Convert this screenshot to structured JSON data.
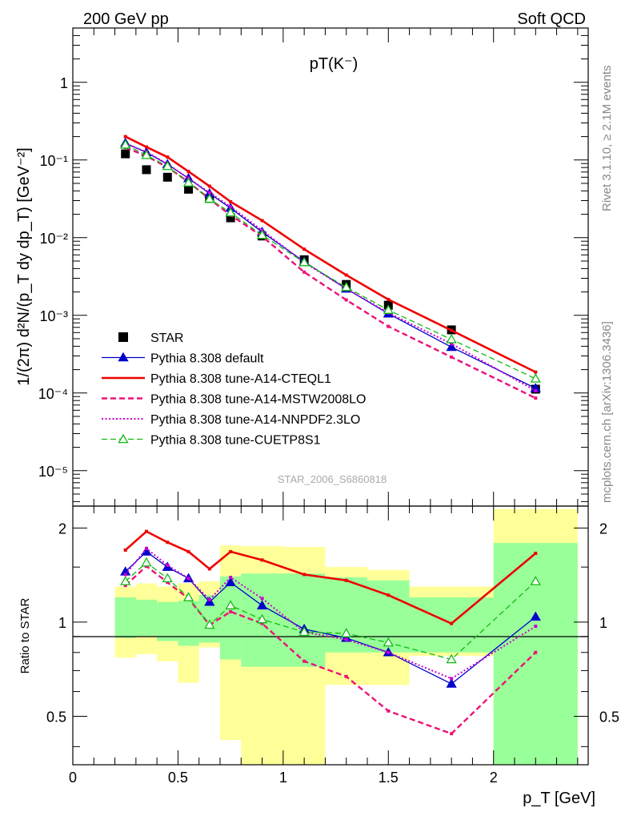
{
  "header": {
    "left": "200 GeV pp",
    "right": "Soft QCD"
  },
  "side_labels": {
    "rivet": "Rivet 3.1.10, ≥ 2.1M events",
    "source": "mcplots.cern.ch [arXiv:1306.3436]"
  },
  "chart_data": [
    {
      "type": "line",
      "title": "pT(K⁻)",
      "watermark": "STAR_2006_S6860818",
      "ylabel": "1/(2π) d²N/(p_T dy dp_T) [GeV⁻²]",
      "yscale": "log",
      "xlim": [
        0,
        2.45
      ],
      "ylim": [
        3.5e-06,
        5
      ],
      "y_tick_labels": [
        "1",
        "10⁻¹",
        "10⁻²",
        "10⁻³",
        "10⁻⁴",
        "10⁻⁵"
      ],
      "legend_position": "bottom-left",
      "x": [
        0.25,
        0.35,
        0.45,
        0.55,
        0.65,
        0.75,
        0.9,
        1.1,
        1.3,
        1.5,
        1.8,
        2.2
      ],
      "series": [
        {
          "name": "STAR",
          "style": "square",
          "color": "#000000",
          "values": [
            0.12,
            0.075,
            0.06,
            0.042,
            0.032,
            0.018,
            0.0105,
            0.0052,
            0.0025,
            0.00135,
            0.00065,
            0.000112
          ]
        },
        {
          "name": "Pythia 8.308 default",
          "style": "solid-triangle",
          "color": "#0000cc",
          "values": [
            0.165,
            0.125,
            0.088,
            0.058,
            0.037,
            0.024,
            0.0118,
            0.0049,
            0.0022,
            0.00105,
            0.00039,
            0.000115
          ]
        },
        {
          "name": "Pythia 8.308 tune-A14-CTEQL1",
          "style": "solid",
          "color": "#ee0000",
          "values": [
            0.2,
            0.147,
            0.109,
            0.071,
            0.046,
            0.029,
            0.0166,
            0.0071,
            0.0033,
            0.0016,
            0.00064,
            0.000186
          ]
        },
        {
          "name": "Pythia 8.308 tune-A14-MSTW2008LO",
          "style": "dashed",
          "color": "#ee1177",
          "values": [
            0.145,
            0.112,
            0.081,
            0.052,
            0.0315,
            0.0195,
            0.0104,
            0.0036,
            0.00158,
            0.00072,
            0.00029,
            8.6e-05
          ]
        },
        {
          "name": "Pythia 8.308 tune-A14-NNPDF2.3LO",
          "style": "dotted",
          "color": "#cc00cc",
          "values": [
            0.162,
            0.127,
            0.089,
            0.058,
            0.038,
            0.025,
            0.0124,
            0.0048,
            0.0022,
            0.00108,
            0.00043,
            0.000107
          ]
        },
        {
          "name": "Pythia 8.308 tune-CUETP8S1",
          "style": "dashed-open-triangle",
          "color": "#11bb11",
          "values": [
            0.157,
            0.115,
            0.083,
            0.051,
            0.0315,
            0.021,
            0.0108,
            0.0048,
            0.0023,
            0.00117,
            0.00049,
            0.000153
          ]
        }
      ]
    },
    {
      "type": "line",
      "ylabel": "Ratio to STAR",
      "xlabel": "p_T [GeV]",
      "yscale": "log",
      "xlim": [
        0,
        2.45
      ],
      "ylim": [
        0.35,
        2.35
      ],
      "x_tick_labels": [
        "0",
        "0.5",
        "1",
        "1.5",
        "2"
      ],
      "y_tick_labels": [
        "0.5",
        "1",
        "2"
      ],
      "reference_line": 1,
      "uncertainty_bands": [
        {
          "x_range": [
            0.2,
            0.3
          ],
          "green": [
            0.89,
            1.2
          ],
          "yellow": [
            0.77,
            1.3
          ]
        },
        {
          "x_range": [
            0.3,
            0.4
          ],
          "green": [
            0.9,
            1.18
          ],
          "yellow": [
            0.79,
            1.33
          ]
        },
        {
          "x_range": [
            0.4,
            0.5
          ],
          "green": [
            0.87,
            1.16
          ],
          "yellow": [
            0.75,
            1.3
          ]
        },
        {
          "x_range": [
            0.5,
            0.6
          ],
          "green": [
            0.84,
            1.17
          ],
          "yellow": [
            0.64,
            1.33
          ]
        },
        {
          "x_range": [
            0.6,
            0.7
          ],
          "green": [
            0.86,
            1.22
          ],
          "yellow": [
            0.83,
            1.35
          ]
        },
        {
          "x_range": [
            0.7,
            0.8
          ],
          "green": [
            0.76,
            1.4
          ],
          "yellow": [
            0.42,
            1.76
          ]
        },
        {
          "x_range": [
            0.8,
            1.0
          ],
          "green": [
            0.72,
            1.43
          ],
          "yellow": [
            0.35,
            1.75
          ]
        },
        {
          "x_range": [
            1.0,
            1.2
          ],
          "green": [
            0.72,
            1.43
          ],
          "yellow": [
            0.35,
            1.74
          ]
        },
        {
          "x_range": [
            1.2,
            1.4
          ],
          "green": [
            0.8,
            1.39
          ],
          "yellow": [
            0.63,
            1.5
          ]
        },
        {
          "x_range": [
            1.4,
            1.6
          ],
          "green": [
            0.8,
            1.36
          ],
          "yellow": [
            0.63,
            1.47
          ]
        },
        {
          "x_range": [
            1.6,
            2.0
          ],
          "green": [
            0.8,
            1.2
          ],
          "yellow": [
            0.78,
            1.3
          ]
        },
        {
          "x_range": [
            2.0,
            2.4
          ],
          "green": [
            0.35,
            1.79
          ],
          "yellow": [
            0.35,
            2.3
          ]
        }
      ],
      "x": [
        0.25,
        0.35,
        0.45,
        0.55,
        0.65,
        0.75,
        0.9,
        1.1,
        1.3,
        1.5,
        1.8,
        2.2
      ],
      "series": [
        {
          "name": "Pythia 8.308 default",
          "style": "solid-triangle",
          "color": "#0000cc",
          "values": [
            1.45,
            1.68,
            1.5,
            1.38,
            1.16,
            1.34,
            1.13,
            0.95,
            0.89,
            0.8,
            0.635,
            1.04
          ]
        },
        {
          "name": "Pythia 8.308 tune-A14-CTEQL1",
          "style": "solid",
          "color": "#ee0000",
          "values": [
            1.7,
            1.95,
            1.8,
            1.68,
            1.48,
            1.68,
            1.58,
            1.42,
            1.36,
            1.22,
            0.99,
            1.66
          ]
        },
        {
          "name": "Pythia 8.308 tune-A14-MSTW2008LO",
          "style": "dashed",
          "color": "#ee1177",
          "values": [
            1.31,
            1.51,
            1.34,
            1.19,
            0.98,
            1.08,
            0.99,
            0.75,
            0.67,
            0.52,
            0.44,
            0.8
          ]
        },
        {
          "name": "Pythia 8.308 tune-A14-NNPDF2.3LO",
          "style": "dotted",
          "color": "#cc00cc",
          "values": [
            1.42,
            1.72,
            1.52,
            1.38,
            1.18,
            1.39,
            1.19,
            0.93,
            0.88,
            0.8,
            0.66,
            0.97
          ]
        },
        {
          "name": "Pythia 8.308 tune-CUETP8S1",
          "style": "dashed-open-triangle",
          "color": "#11bb11",
          "values": [
            1.35,
            1.55,
            1.38,
            1.2,
            0.98,
            1.13,
            1.02,
            0.93,
            0.92,
            0.86,
            0.76,
            1.35
          ]
        }
      ]
    }
  ]
}
